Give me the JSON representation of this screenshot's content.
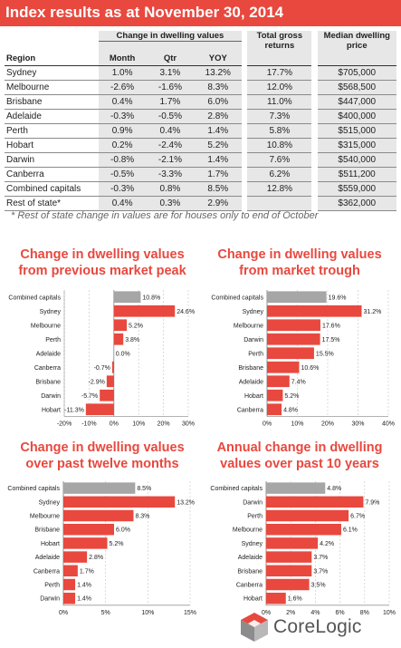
{
  "title": "Index results as at November 30, 2014",
  "table": {
    "group_header": "Change in dwelling values",
    "columns": {
      "region": "Region",
      "month": "Month",
      "qtr": "Qtr",
      "yoy": "YOY",
      "returns": "Total gross returns",
      "price": "Median dwelling price"
    },
    "rows": [
      {
        "region": "Sydney",
        "month": "1.0%",
        "qtr": "3.1%",
        "yoy": "13.2%",
        "returns": "17.7%",
        "price": "$705,000"
      },
      {
        "region": "Melbourne",
        "month": "-2.6%",
        "qtr": "-1.6%",
        "yoy": "8.3%",
        "returns": "12.0%",
        "price": "$568,500"
      },
      {
        "region": "Brisbane",
        "month": "0.4%",
        "qtr": "1.7%",
        "yoy": "6.0%",
        "returns": "11.0%",
        "price": "$447,000"
      },
      {
        "region": "Adelaide",
        "month": "-0.3%",
        "qtr": "-0.5%",
        "yoy": "2.8%",
        "returns": "7.3%",
        "price": "$400,000"
      },
      {
        "region": "Perth",
        "month": "0.9%",
        "qtr": "0.4%",
        "yoy": "1.4%",
        "returns": "5.8%",
        "price": "$515,000"
      },
      {
        "region": "Hobart",
        "month": "0.2%",
        "qtr": "-2.4%",
        "yoy": "5.2%",
        "returns": "10.8%",
        "price": "$315,000"
      },
      {
        "region": "Darwin",
        "month": "-0.8%",
        "qtr": "-2.1%",
        "yoy": "1.4%",
        "returns": "7.6%",
        "price": "$540,000"
      },
      {
        "region": "Canberra",
        "month": "-0.5%",
        "qtr": "-3.3%",
        "yoy": "1.7%",
        "returns": "6.2%",
        "price": "$511,200"
      },
      {
        "region": "Combined capitals",
        "month": "-0.3%",
        "qtr": "0.8%",
        "yoy": "8.5%",
        "returns": "12.8%",
        "price": "$559,000"
      },
      {
        "region": "Rest of state*",
        "month": "0.4%",
        "qtr": "0.3%",
        "yoy": "2.9%",
        "returns": "",
        "price": "$362,000"
      }
    ]
  },
  "footnote": "* Rest of state change in values are for houses only to end of October",
  "colors": {
    "accent": "#e8483e",
    "bar": "#e8483e",
    "highlight_bar": "#a6a6a6",
    "shade": "#e7e7e7"
  },
  "logo": {
    "text": "CoreLogic",
    "icon": "corelogic-cube-icon"
  },
  "chart_data": [
    {
      "type": "bar",
      "orientation": "horizontal",
      "title": "Change in dwelling values from previous market peak",
      "categories": [
        "Combined capitals",
        "Sydney",
        "Melbourne",
        "Perth",
        "Adelaide",
        "Canberra",
        "Brisbane",
        "Darwin",
        "Hobart"
      ],
      "values": [
        10.8,
        24.6,
        5.2,
        3.8,
        0.0,
        -0.7,
        -2.9,
        -5.7,
        -11.3
      ],
      "labels": [
        "10.8%",
        "24.6%",
        "5.2%",
        "3.8%",
        "0.0%",
        "-0.7%",
        "-2.9%",
        "-5.7%",
        "-11.3%"
      ],
      "highlight": "Combined capitals",
      "xlim": [
        -20,
        30
      ],
      "ticks": [
        -20,
        -10,
        0,
        10,
        20,
        30
      ],
      "tick_labels": [
        "-20%",
        "-10%",
        "0%",
        "10%",
        "20%",
        "30%"
      ]
    },
    {
      "type": "bar",
      "orientation": "horizontal",
      "title": "Change in dwelling values from market trough",
      "categories": [
        "Combined capitals",
        "Sydney",
        "Melbourne",
        "Darwin",
        "Perth",
        "Brisbane",
        "Adelaide",
        "Hobart",
        "Canberra"
      ],
      "values": [
        19.6,
        31.2,
        17.6,
        17.5,
        15.5,
        10.6,
        7.4,
        5.2,
        4.8
      ],
      "labels": [
        "19.6%",
        "31.2%",
        "17.6%",
        "17.5%",
        "15.5%",
        "10.6%",
        "7.4%",
        "5.2%",
        "4.8%"
      ],
      "highlight": "Combined capitals",
      "xlim": [
        0,
        40
      ],
      "ticks": [
        0,
        10,
        20,
        30,
        40
      ],
      "tick_labels": [
        "0%",
        "10%",
        "20%",
        "30%",
        "40%"
      ]
    },
    {
      "type": "bar",
      "orientation": "horizontal",
      "title": "Change in dwelling values over past twelve months",
      "categories": [
        "Combined capitals",
        "Sydney",
        "Melbourne",
        "Brisbane",
        "Hobart",
        "Adelaide",
        "Canberra",
        "Perth",
        "Darwin"
      ],
      "values": [
        8.5,
        13.2,
        8.3,
        6.0,
        5.2,
        2.8,
        1.7,
        1.4,
        1.4
      ],
      "labels": [
        "8.5%",
        "13.2%",
        "8.3%",
        "6.0%",
        "5.2%",
        "2.8%",
        "1.7%",
        "1.4%",
        "1.4%"
      ],
      "highlight": "Combined capitals",
      "xlim": [
        0,
        15
      ],
      "ticks": [
        0,
        5,
        10,
        15
      ],
      "tick_labels": [
        "0%",
        "5%",
        "10%",
        "15%"
      ]
    },
    {
      "type": "bar",
      "orientation": "horizontal",
      "title": "Annual change in dwelling values over past 10 years",
      "categories": [
        "Combined capitals",
        "Darwin",
        "Perth",
        "Melbourne",
        "Sydney",
        "Adelaide",
        "Brisbane",
        "Canberra",
        "Hobart"
      ],
      "values": [
        4.8,
        7.9,
        6.7,
        6.1,
        4.2,
        3.7,
        3.7,
        3.5,
        1.6
      ],
      "labels": [
        "4.8%",
        "7.9%",
        "6.7%",
        "6.1%",
        "4.2%",
        "3.7%",
        "3.7%",
        "3.5%",
        "1.6%"
      ],
      "highlight": "Combined capitals",
      "xlim": [
        0,
        10
      ],
      "ticks": [
        0,
        2,
        4,
        6,
        8,
        10
      ],
      "tick_labels": [
        "0%",
        "2%",
        "4%",
        "6%",
        "8%",
        "10%"
      ]
    }
  ]
}
